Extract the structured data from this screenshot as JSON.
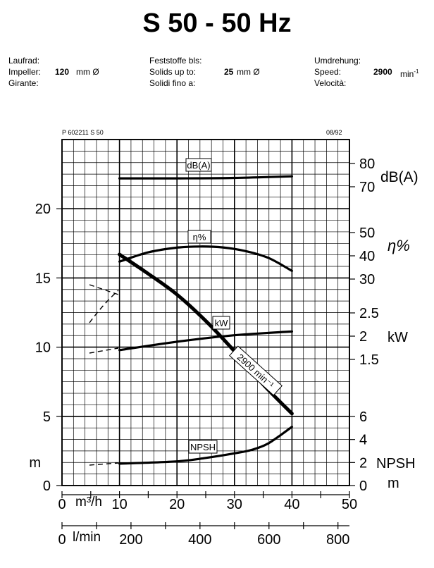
{
  "header": {
    "title": "S 50 - 50 Hz",
    "col1_labels": [
      "Laufrad:",
      "Impeller:",
      "Girante:"
    ],
    "impeller_value": "120",
    "impeller_unit": "mm Ø",
    "col2_labels": [
      "Feststoffe bls:",
      "Solids up to:",
      "Solidi fino a:"
    ],
    "solids_value": "25",
    "solids_unit": "mm Ø",
    "col3_labels": [
      "Umdrehung:",
      "Speed:",
      "Velocità:"
    ],
    "speed_value": "2900",
    "speed_unit": "min",
    "speed_exp": "-1"
  },
  "chart_meta": {
    "code": "P 602211 S 50",
    "date": "08/92"
  },
  "chart_data": {
    "type": "line",
    "x_axes": [
      {
        "unit": "m³/h",
        "range": [
          0,
          50
        ],
        "ticks": [
          0,
          10,
          20,
          30,
          40,
          50
        ]
      },
      {
        "unit": "l/min",
        "range": [
          0,
          833.3
        ],
        "ticks": [
          0,
          200,
          400,
          600,
          800
        ]
      }
    ],
    "y_left": {
      "label": "m",
      "range": [
        0,
        25
      ],
      "ticks": [
        0,
        5,
        10,
        15,
        20
      ]
    },
    "y_right_scales": [
      {
        "label": "dB(A)",
        "ticks": [
          70,
          80
        ]
      },
      {
        "label": "η%",
        "ticks": [
          30,
          40,
          50
        ]
      },
      {
        "label": "kW",
        "ticks": [
          1.5,
          2.0,
          2.5
        ]
      },
      {
        "label": "NPSH m",
        "ticks": [
          0,
          2,
          4,
          6
        ]
      }
    ],
    "grid": true,
    "series": [
      {
        "name": "2900 min⁻¹",
        "x": [
          10,
          15,
          20,
          25,
          30,
          35,
          40
        ],
        "y": [
          16.7,
          15.3,
          13.8,
          11.9,
          9.7,
          7.3,
          5.2
        ]
      },
      {
        "name": "η%",
        "x": [
          10,
          15,
          20,
          24,
          28,
          32,
          36,
          40
        ],
        "y": [
          37.5,
          41.5,
          43.5,
          44,
          43.6,
          42,
          39,
          33.5
        ]
      },
      {
        "name": "kW",
        "x": [
          10,
          20,
          30,
          40
        ],
        "y": [
          1.7,
          1.88,
          2.02,
          2.1
        ]
      },
      {
        "name": "dB(A)",
        "x": [
          10,
          20,
          30,
          40
        ],
        "y": [
          73.6,
          73.6,
          73.8,
          74.5
        ]
      },
      {
        "name": "NPSH",
        "x": [
          10,
          20,
          25,
          30,
          33,
          36,
          40
        ],
        "y": [
          1.9,
          2.1,
          2.4,
          2.8,
          3.1,
          3.7,
          5.1
        ]
      }
    ]
  }
}
